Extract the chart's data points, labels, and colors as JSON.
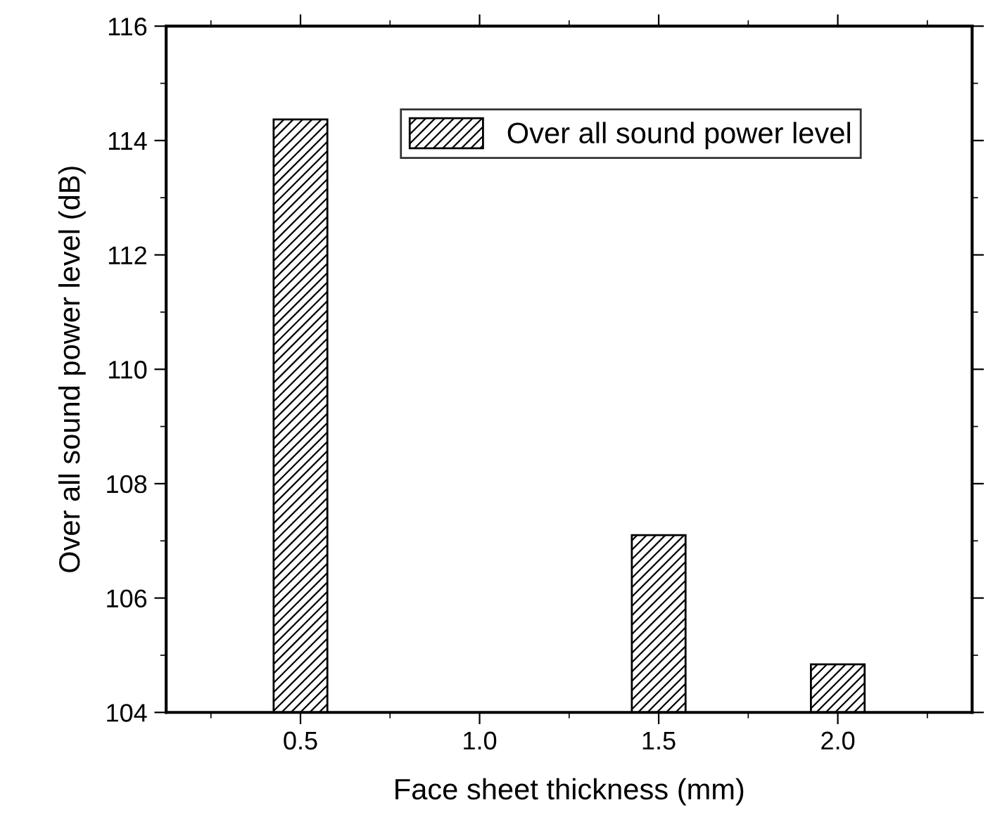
{
  "chart_data": {
    "type": "bar",
    "xlabel": "Face sheet thickness (mm)",
    "ylabel": "Over all sound power level (dB)",
    "x": [
      0.5,
      1.5,
      2.0
    ],
    "series": [
      {
        "name": "Over all sound power level",
        "color": "#000000",
        "values": [
          114.37,
          107.1,
          104.84
        ]
      }
    ],
    "xlim": [
      0.125,
      2.375
    ],
    "xticks": [
      {
        "value": 0.5,
        "label": "0.5"
      },
      {
        "value": 1.0,
        "label": "1.0"
      },
      {
        "value": 1.5,
        "label": "1.5"
      },
      {
        "value": 2.0,
        "label": "2.0"
      }
    ],
    "ylim": [
      104,
      116
    ],
    "yticks": [
      104,
      106,
      108,
      110,
      112,
      114,
      116
    ],
    "grid": false,
    "legend": "top right"
  }
}
